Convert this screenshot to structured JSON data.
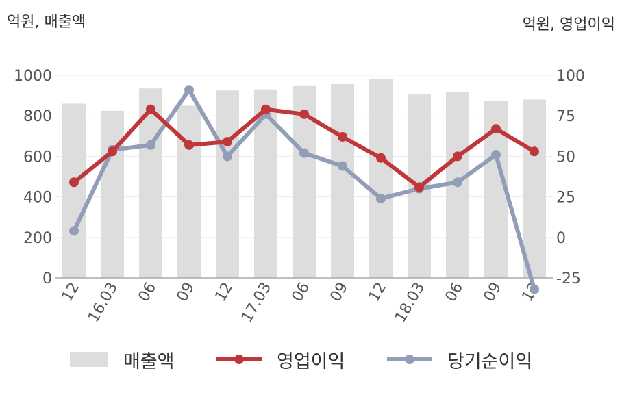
{
  "units": {
    "left": "억원, 매출액",
    "right": "억원, 영업이익"
  },
  "legend": [
    {
      "label": "매출액",
      "kind": "bar",
      "color": "#dddddd"
    },
    {
      "label": "영업이익",
      "kind": "line",
      "color": "#c0373a"
    },
    {
      "label": "당기순이익",
      "kind": "line",
      "color": "#929db8"
    }
  ],
  "chart_data": {
    "type": "bar+line",
    "categories": [
      "12",
      "16.03",
      "06",
      "09",
      "12",
      "17.03",
      "06",
      "09",
      "12",
      "18.03",
      "06",
      "09",
      "12"
    ],
    "left_axis": {
      "ylim": [
        0,
        1000
      ],
      "ticks": [
        0,
        200,
        400,
        600,
        800,
        1000
      ]
    },
    "right_axis": {
      "ylim": [
        -25,
        100
      ],
      "ticks": [
        -25,
        0,
        25,
        50,
        75,
        100
      ]
    },
    "grid": true,
    "legend_position": "bottom",
    "series": [
      {
        "name": "매출액",
        "type": "bar",
        "axis": "left",
        "color": "#dddddd",
        "values": [
          860,
          825,
          935,
          850,
          925,
          930,
          950,
          960,
          980,
          905,
          915,
          875,
          880
        ]
      },
      {
        "name": "영업이익",
        "type": "line",
        "axis": "right",
        "color": "#c0373a",
        "values": [
          34,
          53,
          79,
          57,
          59,
          79,
          76,
          62,
          49,
          31,
          50,
          67,
          53
        ]
      },
      {
        "name": "당기순이익",
        "type": "line",
        "axis": "right",
        "color": "#929db8",
        "values": [
          4,
          54,
          57,
          91,
          50,
          76,
          52,
          44,
          24,
          30,
          34,
          51,
          -32
        ]
      }
    ]
  }
}
